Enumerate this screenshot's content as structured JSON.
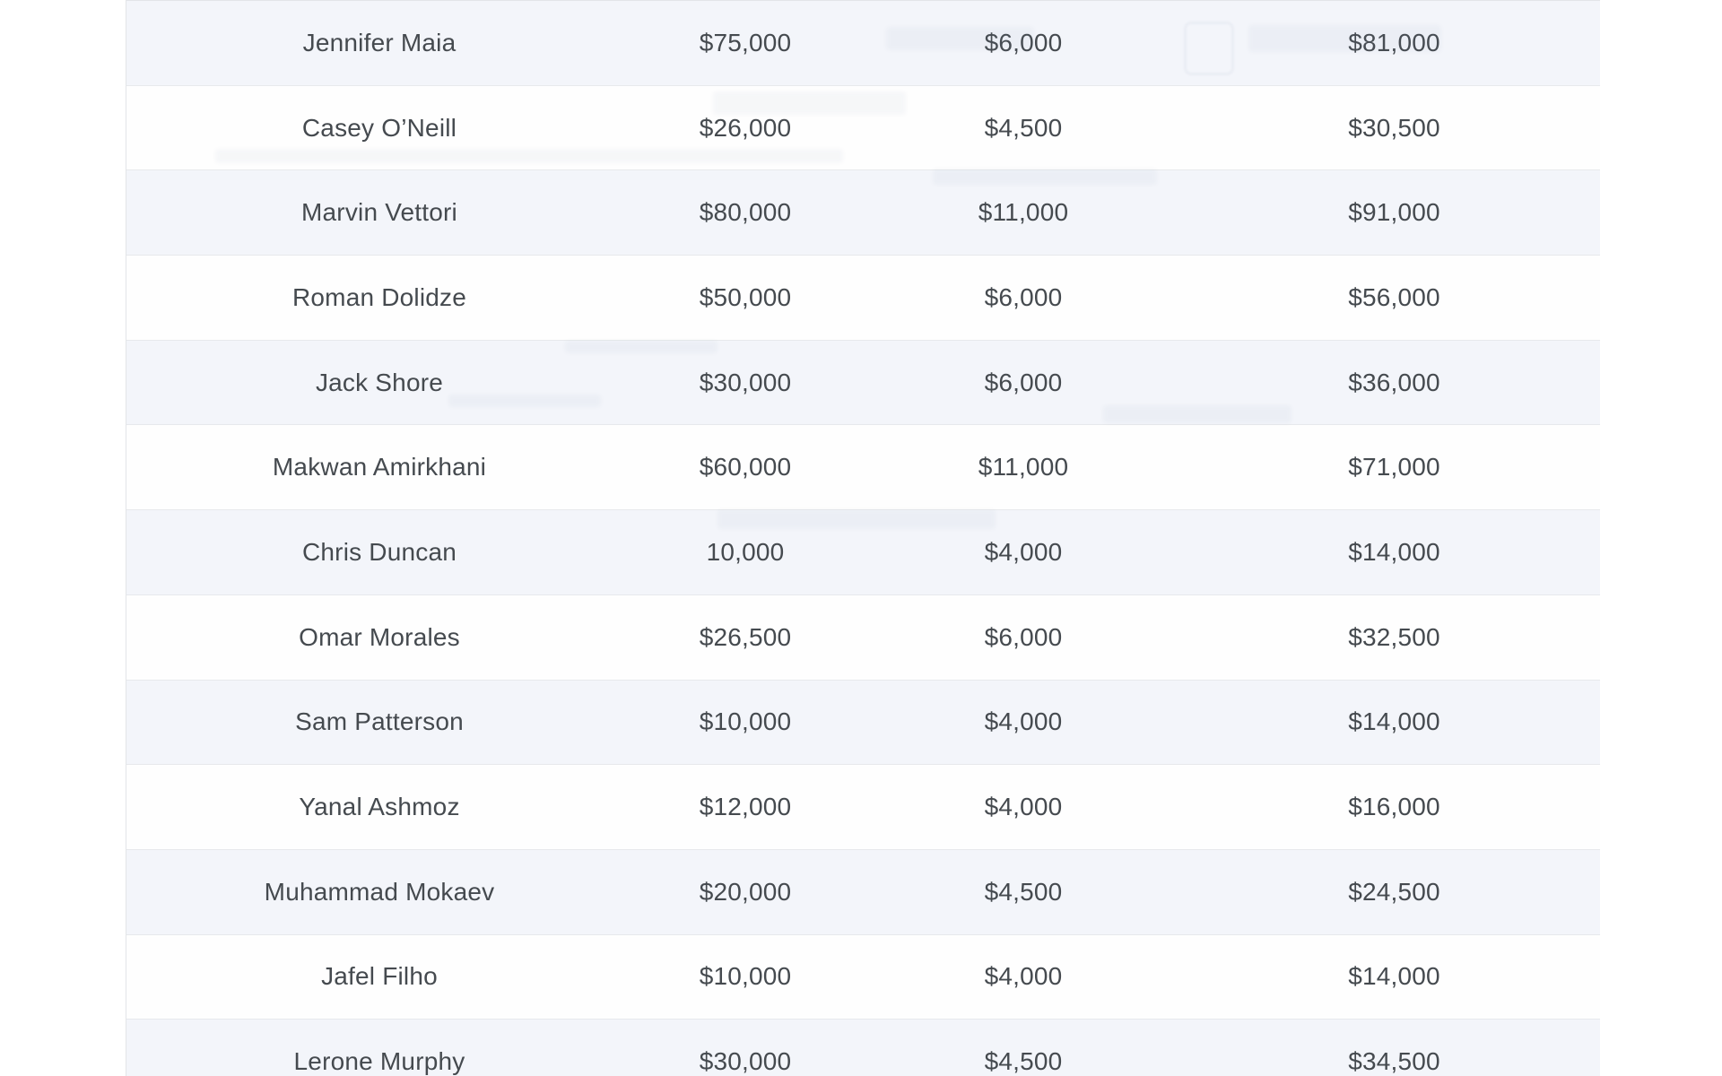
{
  "page": {
    "background_color": "#ffffff"
  },
  "table": {
    "style": {
      "stripe_color": "#f3f5fa",
      "row_border_color": "#e7e9ec",
      "outer_border_color": "#e3e5e8",
      "text_color": "#454a4f"
    },
    "rows": [
      {
        "fighter": "Jennifer Maia",
        "salary": "$75,000",
        "bonus": "$6,000",
        "total": "$81,000"
      },
      {
        "fighter": "Casey O’Neill",
        "salary": "$26,000",
        "bonus": "$4,500",
        "total": "$30,500"
      },
      {
        "fighter": "Marvin Vettori",
        "salary": "$80,000",
        "bonus": "$11,000",
        "total": "$91,000"
      },
      {
        "fighter": "Roman Dolidze",
        "salary": "$50,000",
        "bonus": "$6,000",
        "total": "$56,000"
      },
      {
        "fighter": "Jack Shore",
        "salary": "$30,000",
        "bonus": "$6,000",
        "total": "$36,000"
      },
      {
        "fighter": "Makwan Amirkhani",
        "salary": "$60,000",
        "bonus": "$11,000",
        "total": "$71,000"
      },
      {
        "fighter": "Chris Duncan",
        "salary": "10,000",
        "bonus": "$4,000",
        "total": "$14,000"
      },
      {
        "fighter": "Omar Morales",
        "salary": "$26,500",
        "bonus": "$6,000",
        "total": "$32,500"
      },
      {
        "fighter": "Sam Patterson",
        "salary": "$10,000",
        "bonus": "$4,000",
        "total": "$14,000"
      },
      {
        "fighter": "Yanal Ashmoz",
        "salary": "$12,000",
        "bonus": "$4,000",
        "total": "$16,000"
      },
      {
        "fighter": "Muhammad Mokaev",
        "salary": "$20,000",
        "bonus": "$4,500",
        "total": "$24,500"
      },
      {
        "fighter": "Jafel Filho",
        "salary": "$10,000",
        "bonus": "$4,000",
        "total": "$14,000"
      },
      {
        "fighter": "Lerone Murphy",
        "salary": "$30,000",
        "bonus": "$4,500",
        "total": "$34,500"
      }
    ]
  }
}
